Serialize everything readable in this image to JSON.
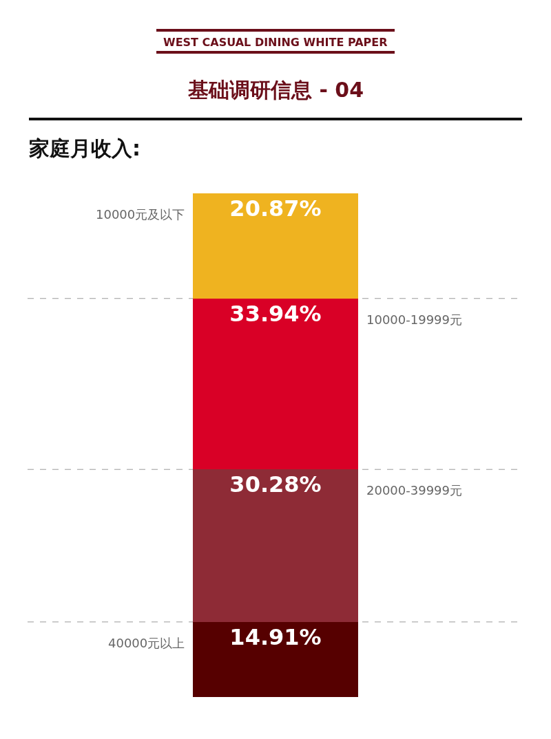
{
  "chart_data": {
    "type": "bar",
    "stacked": true,
    "title": "家庭月收入:",
    "annotations": [
      "WEST CASUAL DINING WHITE PAPER",
      "基础调研信息 - 04"
    ],
    "categories": [
      null
    ],
    "legend": false,
    "series": [
      {
        "name": "40000元以上",
        "color": "#560000",
        "values": [
          14.91
        ],
        "value_labels": [
          "14.91%"
        ]
      },
      {
        "name": "20000-39999元",
        "color": "#8e2b36",
        "values": [
          30.28
        ],
        "value_labels": [
          "30.28%"
        ]
      },
      {
        "name": "10000-19999元",
        "color": "#d90026",
        "values": [
          33.94
        ],
        "value_labels": [
          "33.94%"
        ]
      },
      {
        "name": "10000元及以下",
        "color": "#efb320",
        "values": [
          20.87
        ],
        "value_labels": [
          "20.87%"
        ]
      }
    ],
    "ref_lines": [
      {
        "axis": "y",
        "value": 14.91,
        "color": "#999999",
        "line_style": "dashed"
      },
      {
        "axis": "y",
        "value": 45.19,
        "color": "#999999",
        "line_style": "dashed"
      },
      {
        "axis": "y",
        "value": 79.13,
        "color": "#999999",
        "line_style": "dashed"
      }
    ]
  }
}
